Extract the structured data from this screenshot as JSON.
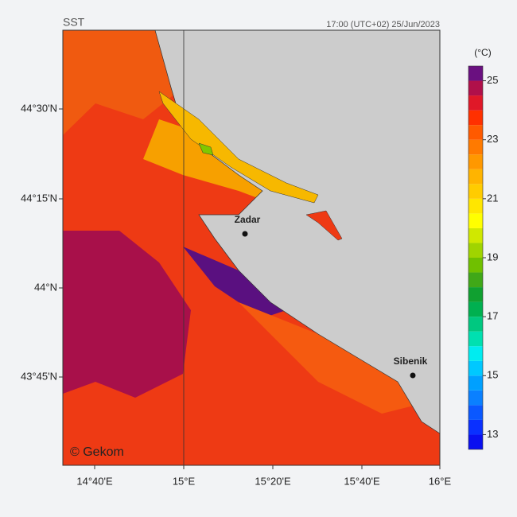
{
  "header": {
    "title": "SST",
    "timestamp": "17:00 (UTC+02)  25/Jun/2023"
  },
  "colorbar": {
    "unit": "(°C)",
    "min": 12.5,
    "max": 25.5,
    "ticks": [
      13,
      15,
      17,
      19,
      21,
      23,
      25
    ],
    "colors": [
      "#0a10f0",
      "#0a30ff",
      "#0a58ff",
      "#0a80ff",
      "#00a0ff",
      "#00c8ff",
      "#00ecf0",
      "#00e0b0",
      "#00c880",
      "#00b050",
      "#10a030",
      "#40a818",
      "#70c000",
      "#a0d400",
      "#d0e800",
      "#ffff00",
      "#ffe600",
      "#ffcc00",
      "#ffb400",
      "#ff9800",
      "#ff7a00",
      "#ff5a00",
      "#ff3000",
      "#e01828",
      "#b0104a",
      "#6a1080"
    ]
  },
  "axes": {
    "lat_labels": [
      "44°30'N",
      "44°15'N",
      "44°N",
      "43°45'N"
    ],
    "lon_labels": [
      "14°40'E",
      "15°E",
      "15°20'E",
      "15°40'E",
      "16°E"
    ]
  },
  "places": [
    {
      "name": "Zadar"
    },
    {
      "name": "Sibenik"
    }
  ],
  "copyright": "© Gekom"
}
